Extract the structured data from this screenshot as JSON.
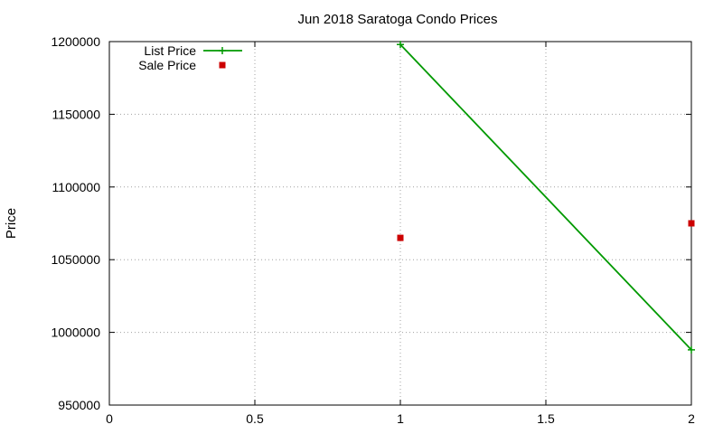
{
  "chart_data": {
    "type": "line",
    "title": "Jun 2018 Saratoga Condo Prices",
    "xlabel": "",
    "ylabel": "Price",
    "xlim": [
      0,
      2
    ],
    "ylim": [
      950000,
      1200000
    ],
    "x_ticks": [
      {
        "value": 0,
        "label": "0"
      },
      {
        "value": 0.5,
        "label": "0.5"
      },
      {
        "value": 1,
        "label": "1"
      },
      {
        "value": 1.5,
        "label": "1.5"
      },
      {
        "value": 2,
        "label": "2"
      }
    ],
    "y_ticks": [
      {
        "value": 950000,
        "label": "950000"
      },
      {
        "value": 1000000,
        "label": "1000000"
      },
      {
        "value": 1050000,
        "label": "1050000"
      },
      {
        "value": 1100000,
        "label": "1100000"
      },
      {
        "value": 1150000,
        "label": "1150000"
      },
      {
        "value": 1200000,
        "label": "1200000"
      }
    ],
    "grid": true,
    "legend_position": "top-left",
    "series": [
      {
        "name": "List Price",
        "style": "line-with-plus-markers",
        "color": "#009900",
        "points": [
          {
            "x": 1,
            "y": 1198000
          },
          {
            "x": 2,
            "y": 988000
          }
        ]
      },
      {
        "name": "Sale Price",
        "style": "square-markers",
        "color": "#cc0000",
        "points": [
          {
            "x": 1,
            "y": 1065000
          },
          {
            "x": 2,
            "y": 1075000
          }
        ]
      }
    ]
  }
}
